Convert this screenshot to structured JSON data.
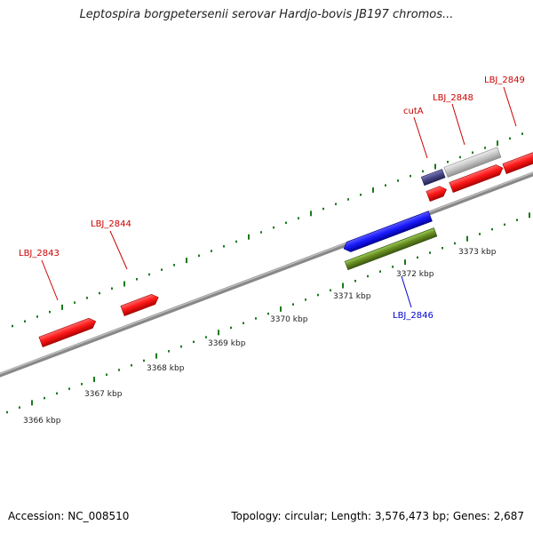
{
  "title": "Leptospira borgpetersenii serovar Hardjo-bovis JB197 chromos...",
  "footer": {
    "accession": "Accession: NC_008510",
    "summary": "Topology: circular; Length: 3,576,473 bp; Genes: 2,687"
  },
  "colors": {
    "forward_gene": "#ff1a1a",
    "reverse_gene": "#1a1aff",
    "rna": "#6b8e23",
    "pseudo": "#c8c8c8",
    "cds_alt": "#4a4a8a",
    "tick": "#1a7a1a",
    "backbone": "#888888",
    "label_forward": "#cc0000",
    "label_reverse": "#0000cc"
  },
  "scale": {
    "unit": "kbp",
    "ticks": [
      "3366 kbp",
      "3367 kbp",
      "3368 kbp",
      "3369 kbp",
      "3370 kbp",
      "3371 kbp",
      "3372 kbp",
      "3373 kbp"
    ]
  },
  "labels": [
    {
      "name": "LBJ_2843",
      "strand": "forward"
    },
    {
      "name": "LBJ_2844",
      "strand": "forward"
    },
    {
      "name": "cutA",
      "strand": "forward"
    },
    {
      "name": "LBJ_2848",
      "strand": "forward"
    },
    {
      "name": "LBJ_2849",
      "strand": "forward"
    },
    {
      "name": "LBJ_2846",
      "strand": "reverse"
    }
  ]
}
